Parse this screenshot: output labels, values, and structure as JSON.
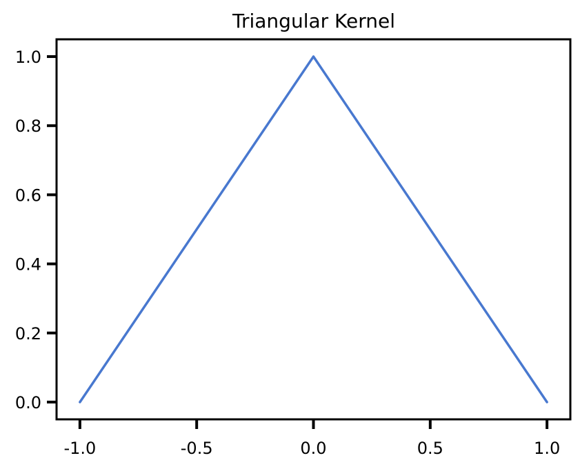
{
  "chart_data": {
    "type": "line",
    "title": "Triangular Kernel",
    "xlabel": "",
    "ylabel": "",
    "xlim": [
      -1.1,
      1.1
    ],
    "ylim": [
      -0.05,
      1.05
    ],
    "x_ticks": [
      -1.0,
      -0.5,
      0.0,
      0.5,
      1.0
    ],
    "x_tick_labels": [
      "-1.0",
      "-0.5",
      "0.0",
      "0.5",
      "1.0"
    ],
    "y_ticks": [
      0.0,
      0.2,
      0.4,
      0.6,
      0.8,
      1.0
    ],
    "y_tick_labels": [
      "0.0",
      "0.2",
      "0.4",
      "0.6",
      "0.8",
      "1.0"
    ],
    "grid": false,
    "style": "xkcd",
    "series": [
      {
        "color": "#4878cf",
        "x": [
          -1.0,
          0.0,
          1.0
        ],
        "y": [
          0.0,
          1.0,
          0.0
        ]
      }
    ]
  }
}
